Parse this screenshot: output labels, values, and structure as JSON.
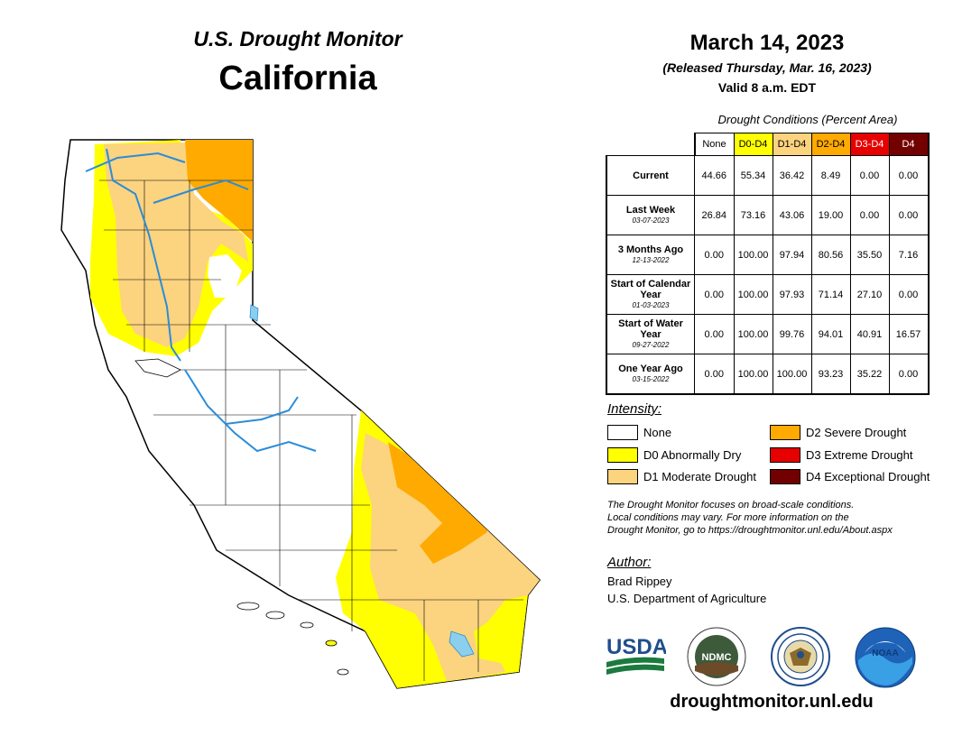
{
  "header": {
    "monitor_title": "U.S. Drought Monitor",
    "state": "California",
    "date": "March 14, 2023",
    "released": "(Released Thursday, Mar. 16, 2023)",
    "valid": "Valid 8 a.m. EDT"
  },
  "conditions": {
    "title": "Drought Conditions (Percent Area)",
    "columns": [
      "None",
      "D0-D4",
      "D1-D4",
      "D2-D4",
      "D3-D4",
      "D4"
    ],
    "column_colors": [
      "#ffffff",
      "#ffff00",
      "#fcd37f",
      "#ffaa00",
      "#e60000",
      "#730000"
    ],
    "rows": [
      {
        "label": "Current",
        "date": "",
        "values": [
          "44.66",
          "55.34",
          "36.42",
          "8.49",
          "0.00",
          "0.00"
        ]
      },
      {
        "label": "Last Week",
        "date": "03-07-2023",
        "values": [
          "26.84",
          "73.16",
          "43.06",
          "19.00",
          "0.00",
          "0.00"
        ]
      },
      {
        "label": "3 Months Ago",
        "date": "12-13-2022",
        "values": [
          "0.00",
          "100.00",
          "97.94",
          "80.56",
          "35.50",
          "7.16"
        ]
      },
      {
        "label": "Start of Calendar Year",
        "date": "01-03-2023",
        "values": [
          "0.00",
          "100.00",
          "97.93",
          "71.14",
          "27.10",
          "0.00"
        ]
      },
      {
        "label": "Start of Water Year",
        "date": "09-27-2022",
        "values": [
          "0.00",
          "100.00",
          "99.76",
          "94.01",
          "40.91",
          "16.57"
        ]
      },
      {
        "label": "One Year Ago",
        "date": "03-15-2022",
        "values": [
          "0.00",
          "100.00",
          "100.00",
          "93.23",
          "35.22",
          "0.00"
        ]
      }
    ]
  },
  "legend": {
    "title": "Intensity:",
    "items": [
      {
        "label": "None",
        "color": "#ffffff"
      },
      {
        "label": "D0 Abnormally Dry",
        "color": "#ffff00"
      },
      {
        "label": "D1 Moderate Drought",
        "color": "#fcd37f"
      },
      {
        "label": "D2 Severe Drought",
        "color": "#ffaa00"
      },
      {
        "label": "D3 Extreme Drought",
        "color": "#e60000"
      },
      {
        "label": "D4 Exceptional Drought",
        "color": "#730000"
      }
    ]
  },
  "note": {
    "line1": "The Drought Monitor focuses on broad-scale conditions.",
    "line2": "Local conditions may vary. For more information on the",
    "line3": "Drought Monitor, go to https://droughtmonitor.unl.edu/About.aspx"
  },
  "author": {
    "title": "Author:",
    "name": "Brad Rippey",
    "org": "U.S. Department of Agriculture"
  },
  "logos": {
    "usda": "USDA",
    "ndmc": "NDMC",
    "noaa": "NOAA"
  },
  "website": "droughtmonitor.unl.edu",
  "map_colors": {
    "water": "#8ccfec",
    "river": "#2b8cd9"
  }
}
